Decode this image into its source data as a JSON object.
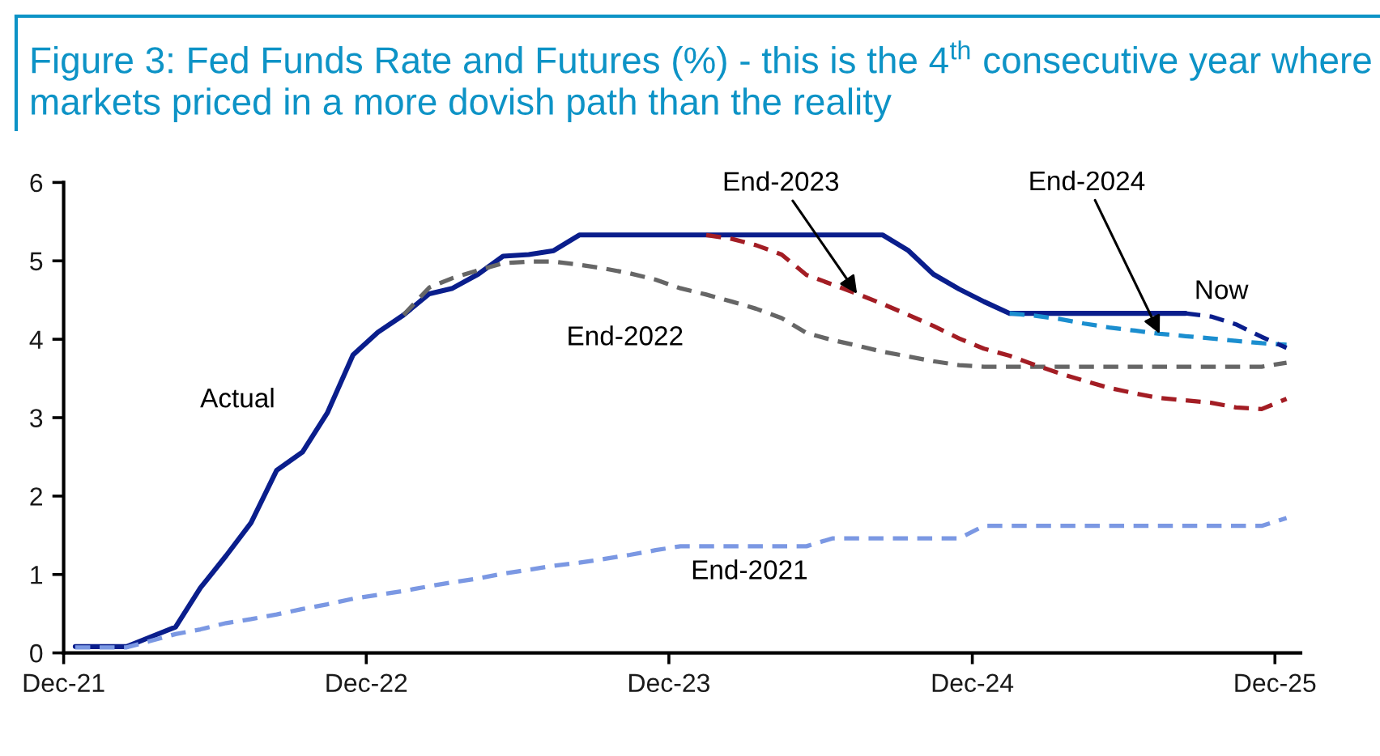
{
  "chart_data": {
    "type": "line",
    "title": "Figure 3: Fed Funds Rate and Futures (%) - this is the 4$^{th}$ consecutive year where markets priced in a more dovish path than the reality",
    "x": [
      "2021-12-15",
      "2022-01-15",
      "2022-02-15",
      "2022-03-15",
      "2022-04-15",
      "2022-05-15",
      "2022-06-15",
      "2022-07-15",
      "2022-08-15",
      "2022-09-15",
      "2022-10-15",
      "2022-11-15",
      "2022-12-15",
      "2023-01-15",
      "2023-02-15",
      "2023-03-15",
      "2023-04-15",
      "2023-05-15",
      "2023-06-15",
      "2023-07-15",
      "2023-08-15",
      "2023-09-15",
      "2023-10-15",
      "2023-11-15",
      "2023-12-15",
      "2024-01-15",
      "2024-02-15",
      "2024-03-15",
      "2024-04-15",
      "2024-05-15",
      "2024-06-15",
      "2024-07-15",
      "2024-08-15",
      "2024-09-15",
      "2024-10-15",
      "2024-11-15",
      "2024-12-15",
      "2025-01-15",
      "2025-02-15",
      "2025-03-15",
      "2025-04-15",
      "2025-05-15",
      "2025-06-15",
      "2025-07-15",
      "2025-08-15",
      "2025-09-15",
      "2025-10-15",
      "2025-11-15",
      "2025-12-15"
    ],
    "xlim": [
      "2021-12-01",
      "2026-01-01"
    ],
    "xticks": [
      {
        "value": "2021-12-01",
        "label": "Dec-21"
      },
      {
        "value": "2022-12-01",
        "label": "Dec-22"
      },
      {
        "value": "2023-12-01",
        "label": "Dec-23"
      },
      {
        "value": "2024-12-01",
        "label": "Dec-24"
      },
      {
        "value": "2025-12-01",
        "label": "Dec-25"
      }
    ],
    "ylim": [
      0,
      6
    ],
    "yticks": [
      0,
      1,
      2,
      3,
      4,
      5,
      6
    ],
    "series": [
      {
        "name": "Actual",
        "color": "#0a1e8c",
        "line_style": "solid",
        "values": [
          0.08,
          0.08,
          0.08,
          0.2,
          0.33,
          0.83,
          1.24,
          1.66,
          2.33,
          2.56,
          3.06,
          3.8,
          4.09,
          4.31,
          4.58,
          4.65,
          4.83,
          5.06,
          5.08,
          5.13,
          5.33,
          5.33,
          5.33,
          5.33,
          5.33,
          5.33,
          5.33,
          5.33,
          5.33,
          5.33,
          5.33,
          5.33,
          5.33,
          5.13,
          4.83,
          4.64,
          4.48,
          4.33,
          4.33,
          4.33,
          4.33,
          4.33,
          4.33,
          4.33,
          4.33,
          null,
          null,
          null,
          null
        ]
      },
      {
        "name": "End-2021",
        "color": "#7b98e3",
        "line_style": "dashed",
        "values": [
          0.07,
          0.07,
          0.07,
          0.15,
          0.24,
          0.3,
          0.38,
          0.43,
          0.49,
          0.56,
          0.62,
          0.69,
          0.74,
          0.79,
          0.85,
          0.9,
          0.95,
          1.01,
          1.06,
          1.11,
          1.15,
          1.2,
          1.25,
          1.31,
          1.36,
          1.36,
          1.36,
          1.36,
          1.36,
          1.36,
          1.46,
          1.46,
          1.46,
          1.46,
          1.46,
          1.46,
          1.62,
          1.62,
          1.62,
          1.62,
          1.62,
          1.62,
          1.62,
          1.62,
          1.62,
          1.62,
          1.62,
          1.62,
          1.72
        ]
      },
      {
        "name": "End-2022",
        "color": "#666666",
        "line_style": "dashed",
        "values": [
          null,
          null,
          null,
          null,
          null,
          null,
          null,
          null,
          null,
          null,
          null,
          null,
          null,
          4.31,
          4.66,
          4.78,
          4.88,
          4.97,
          4.99,
          4.99,
          4.95,
          4.9,
          4.84,
          4.76,
          4.65,
          4.57,
          4.48,
          4.39,
          4.27,
          4.08,
          3.99,
          3.92,
          3.84,
          3.78,
          3.72,
          3.67,
          3.65,
          3.65,
          3.65,
          3.65,
          3.65,
          3.65,
          3.65,
          3.65,
          3.65,
          3.65,
          3.65,
          3.65,
          3.7
        ]
      },
      {
        "name": "End-2023",
        "color": "#a31d24",
        "line_style": "dashed",
        "values": [
          null,
          null,
          null,
          null,
          null,
          null,
          null,
          null,
          null,
          null,
          null,
          null,
          null,
          null,
          null,
          null,
          null,
          null,
          null,
          null,
          null,
          null,
          null,
          null,
          null,
          5.33,
          5.28,
          5.2,
          5.08,
          4.82,
          4.7,
          4.58,
          4.45,
          4.31,
          4.17,
          4.01,
          3.88,
          3.79,
          3.67,
          3.57,
          3.47,
          3.38,
          3.31,
          3.25,
          3.22,
          3.19,
          3.13,
          3.11,
          3.24
        ]
      },
      {
        "name": "End-2024",
        "color": "#1b8ecf",
        "line_style": "dashed",
        "values": [
          null,
          null,
          null,
          null,
          null,
          null,
          null,
          null,
          null,
          null,
          null,
          null,
          null,
          null,
          null,
          null,
          null,
          null,
          null,
          null,
          null,
          null,
          null,
          null,
          null,
          null,
          null,
          null,
          null,
          null,
          null,
          null,
          null,
          null,
          null,
          null,
          null,
          4.33,
          4.3,
          4.26,
          4.2,
          4.15,
          4.11,
          4.07,
          4.04,
          4.01,
          3.98,
          3.95,
          3.93
        ]
      },
      {
        "name": "Now",
        "color": "#0a1e8c",
        "line_style": "dashed",
        "values": [
          null,
          null,
          null,
          null,
          null,
          null,
          null,
          null,
          null,
          null,
          null,
          null,
          null,
          null,
          null,
          null,
          null,
          null,
          null,
          null,
          null,
          null,
          null,
          null,
          null,
          null,
          null,
          null,
          null,
          null,
          null,
          null,
          null,
          null,
          null,
          null,
          null,
          null,
          null,
          null,
          null,
          null,
          null,
          null,
          4.33,
          4.29,
          4.19,
          4.03,
          3.89
        ]
      }
    ]
  }
}
